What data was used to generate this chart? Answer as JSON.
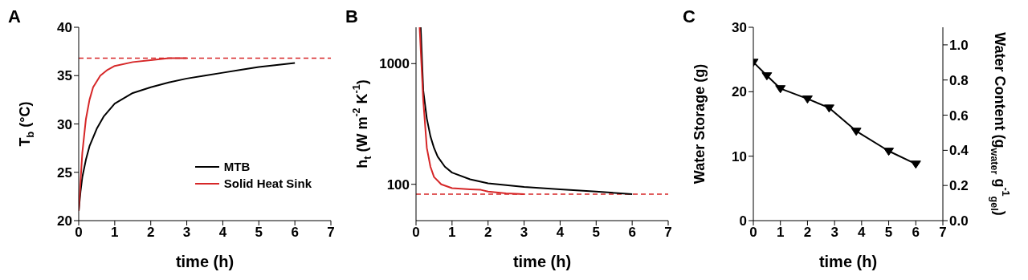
{
  "chart_data": [
    {
      "type": "line",
      "title": "A",
      "xlabel": "time (h)",
      "ylabel": "T$_{b}$ (°C)",
      "xlim": [
        0,
        7
      ],
      "xticks": [
        0,
        1,
        2,
        3,
        4,
        5,
        6,
        7
      ],
      "ylim": [
        20,
        40
      ],
      "yticks": [
        20,
        25,
        30,
        35,
        40
      ],
      "legend": "bottom right",
      "ref_lines": [
        {
          "axis": "y",
          "value": 36.8,
          "color": "#d62728",
          "line_style": "dashed"
        }
      ],
      "series": [
        {
          "name": "MTB",
          "color": "#000000",
          "x": [
            0,
            0.05,
            0.1,
            0.2,
            0.3,
            0.5,
            0.7,
            1,
            1.5,
            2,
            2.5,
            3,
            3.5,
            4,
            4.5,
            5,
            5.5,
            6
          ],
          "values": [
            21,
            23,
            24.5,
            26.3,
            27.7,
            29.5,
            30.8,
            32.1,
            33.2,
            33.8,
            34.3,
            34.7,
            35.0,
            35.3,
            35.6,
            35.9,
            36.1,
            36.3
          ]
        },
        {
          "name": "Solid Heat Sink",
          "color": "#d62728",
          "x": [
            0,
            0.05,
            0.1,
            0.2,
            0.3,
            0.4,
            0.6,
            0.8,
            1,
            1.5,
            2,
            2.5,
            3
          ],
          "values": [
            21,
            24,
            27,
            30.5,
            32.5,
            33.8,
            35.0,
            35.6,
            36.0,
            36.4,
            36.6,
            36.8,
            36.8
          ]
        }
      ]
    },
    {
      "type": "line",
      "title": "B",
      "xlabel": "time (h)",
      "ylabel": "h$_{t}$ (W m$^{-2}$ K$^{-1}$)",
      "xlim": [
        0,
        7
      ],
      "xticks": [
        0,
        1,
        2,
        3,
        4,
        5,
        6,
        7
      ],
      "ylim": [
        50,
        2000
      ],
      "yticks": [
        100,
        1000
      ],
      "log": "y",
      "ref_lines": [
        {
          "axis": "y",
          "value": 83,
          "color": "#d62728",
          "line_style": "dashed"
        }
      ],
      "series": [
        {
          "color": "#000000",
          "x": [
            0.13,
            0.2,
            0.3,
            0.4,
            0.5,
            0.6,
            0.8,
            1,
            1.5,
            2,
            3,
            4,
            5,
            6
          ],
          "values": [
            2000,
            600,
            350,
            250,
            200,
            170,
            140,
            125,
            110,
            102,
            95,
            91,
            87,
            83
          ]
        },
        {
          "color": "#d62728",
          "x": [
            0.1,
            0.15,
            0.2,
            0.3,
            0.4,
            0.5,
            0.7,
            1,
            1.5,
            1.8,
            2,
            2.5,
            3
          ],
          "values": [
            2000,
            1000,
            500,
            200,
            140,
            115,
            100,
            93,
            91,
            90,
            87,
            84,
            83
          ]
        }
      ]
    },
    {
      "type": "line",
      "title": "C",
      "xlabel": "time (h)",
      "ylabel": "Water Storage (g)",
      "y2label": "Water Content (g$_{water}$ g$^{-1}$$_{gel}$)",
      "xlim": [
        0,
        7
      ],
      "xticks": [
        0,
        1,
        2,
        3,
        4,
        5,
        6,
        7
      ],
      "ylim": [
        0,
        30
      ],
      "yticks": [
        0,
        10,
        20,
        30
      ],
      "y2lim": [
        0,
        1.1
      ],
      "y2ticks": [
        {
          "value": 0,
          "label": "0.0"
        },
        {
          "value": 0.2,
          "label": "0.2"
        },
        {
          "value": 0.4,
          "label": "0.4"
        },
        {
          "value": 0.6,
          "label": "0.6"
        },
        {
          "value": 0.8,
          "label": "0.8"
        },
        {
          "value": 1,
          "label": "1.0"
        }
      ],
      "marker": "triangle",
      "series": [
        {
          "color": "#000000",
          "x": [
            0,
            0.5,
            1,
            2,
            2.8,
            3.8,
            5,
            6
          ],
          "values": [
            24.6,
            22.5,
            20.5,
            18.9,
            17.5,
            13.9,
            10.8,
            8.8
          ]
        }
      ]
    }
  ]
}
